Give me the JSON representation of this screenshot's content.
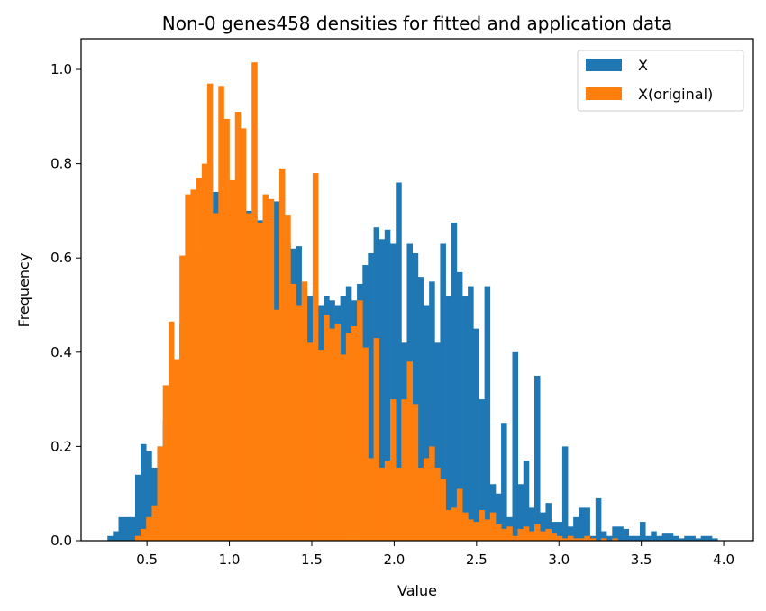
{
  "chart_data": {
    "type": "bar",
    "title": "Non-0 genes458 densities for fitted and application data",
    "xlabel": "Value",
    "ylabel": "Frequency",
    "xlim": [
      0.1,
      4.18
    ],
    "ylim": [
      0,
      1.065
    ],
    "xticks": [
      "0.5",
      "1.0",
      "1.5",
      "2.0",
      "2.5",
      "3.0",
      "3.5",
      "4.0"
    ],
    "xtick_values": [
      0.5,
      1.0,
      1.5,
      2.0,
      2.5,
      3.0,
      3.5,
      4.0
    ],
    "yticks": [
      "0.0",
      "0.2",
      "0.4",
      "0.6",
      "0.8",
      "1.0"
    ],
    "ytick_values": [
      0.0,
      0.2,
      0.4,
      0.6,
      0.8,
      1.0
    ],
    "grid": false,
    "legend_position": "top-right",
    "series": [
      {
        "name": "X",
        "color": "#1f77b4",
        "bin_width": 0.0337,
        "bins": [
          [
            0.26,
            0.01
          ],
          [
            0.293,
            0.02
          ],
          [
            0.327,
            0.05
          ],
          [
            0.36,
            0.05
          ],
          [
            0.394,
            0.05
          ],
          [
            0.428,
            0.14
          ],
          [
            0.461,
            0.205
          ],
          [
            0.495,
            0.19
          ],
          [
            0.529,
            0.155
          ],
          [
            0.562,
            0.2
          ],
          [
            0.596,
            0.255
          ],
          [
            0.63,
            0.31
          ],
          [
            0.663,
            0.385
          ],
          [
            0.697,
            0.46
          ],
          [
            0.731,
            0.52
          ],
          [
            0.764,
            0.57
          ],
          [
            0.798,
            0.62
          ],
          [
            0.832,
            0.68
          ],
          [
            0.865,
            0.72
          ],
          [
            0.899,
            0.74
          ],
          [
            0.933,
            0.695
          ],
          [
            0.966,
            0.7
          ],
          [
            1.0,
            0.71
          ],
          [
            1.034,
            0.69
          ],
          [
            1.067,
            0.68
          ],
          [
            1.101,
            0.7
          ],
          [
            1.135,
            0.69
          ],
          [
            1.168,
            0.68
          ],
          [
            1.202,
            0.675
          ],
          [
            1.236,
            0.66
          ],
          [
            1.269,
            0.72
          ],
          [
            1.303,
            0.64
          ],
          [
            1.337,
            0.63
          ],
          [
            1.37,
            0.62
          ],
          [
            1.404,
            0.625
          ],
          [
            1.438,
            0.51
          ],
          [
            1.471,
            0.52
          ],
          [
            1.505,
            0.53
          ],
          [
            1.539,
            0.5
          ],
          [
            1.572,
            0.52
          ],
          [
            1.606,
            0.51
          ],
          [
            1.64,
            0.5
          ],
          [
            1.673,
            0.52
          ],
          [
            1.707,
            0.54
          ],
          [
            1.74,
            0.51
          ],
          [
            1.774,
            0.545
          ],
          [
            1.808,
            0.585
          ],
          [
            1.841,
            0.61
          ],
          [
            1.875,
            0.665
          ],
          [
            1.909,
            0.64
          ],
          [
            1.942,
            0.66
          ],
          [
            1.976,
            0.63
          ],
          [
            2.01,
            0.76
          ],
          [
            2.043,
            0.42
          ],
          [
            2.077,
            0.63
          ],
          [
            2.111,
            0.61
          ],
          [
            2.144,
            0.56
          ],
          [
            2.178,
            0.5
          ],
          [
            2.212,
            0.55
          ],
          [
            2.245,
            0.42
          ],
          [
            2.279,
            0.63
          ],
          [
            2.313,
            0.52
          ],
          [
            2.346,
            0.675
          ],
          [
            2.38,
            0.57
          ],
          [
            2.414,
            0.52
          ],
          [
            2.447,
            0.54
          ],
          [
            2.481,
            0.45
          ],
          [
            2.515,
            0.3
          ],
          [
            2.548,
            0.54
          ],
          [
            2.582,
            0.12
          ],
          [
            2.616,
            0.1
          ],
          [
            2.649,
            0.25
          ],
          [
            2.683,
            0.05
          ],
          [
            2.717,
            0.4
          ],
          [
            2.75,
            0.12
          ],
          [
            2.784,
            0.17
          ],
          [
            2.818,
            0.07
          ],
          [
            2.851,
            0.35
          ],
          [
            2.885,
            0.06
          ],
          [
            2.919,
            0.08
          ],
          [
            2.952,
            0.04
          ],
          [
            2.986,
            0.04
          ],
          [
            3.02,
            0.2
          ],
          [
            3.053,
            0.03
          ],
          [
            3.087,
            0.05
          ],
          [
            3.121,
            0.07
          ],
          [
            3.154,
            0.07
          ],
          [
            3.188,
            0.01
          ],
          [
            3.222,
            0.09
          ],
          [
            3.255,
            0.02
          ],
          [
            3.289,
            0.01
          ],
          [
            3.323,
            0.03
          ],
          [
            3.356,
            0.03
          ],
          [
            3.39,
            0.025
          ],
          [
            3.424,
            0.01
          ],
          [
            3.457,
            0.01
          ],
          [
            3.491,
            0.04
          ],
          [
            3.525,
            0.01
          ],
          [
            3.558,
            0.02
          ],
          [
            3.592,
            0.01
          ],
          [
            3.626,
            0.015
          ],
          [
            3.659,
            0.015
          ],
          [
            3.693,
            0.01
          ],
          [
            3.727,
            0.005
          ],
          [
            3.76,
            0.01
          ],
          [
            3.794,
            0.01
          ],
          [
            3.828,
            0.005
          ],
          [
            3.861,
            0.01
          ],
          [
            3.895,
            0.01
          ],
          [
            3.929,
            0.005
          ],
          [
            3.962,
            0.0
          ],
          [
            3.996,
            0.0
          ]
        ]
      },
      {
        "name": "X(original)",
        "color": "#ff7f0e",
        "bin_width": 0.0337,
        "bins": [
          [
            0.428,
            0.01
          ],
          [
            0.461,
            0.025
          ],
          [
            0.495,
            0.05
          ],
          [
            0.529,
            0.075
          ],
          [
            0.562,
            0.2
          ],
          [
            0.596,
            0.33
          ],
          [
            0.63,
            0.465
          ],
          [
            0.663,
            0.385
          ],
          [
            0.697,
            0.605
          ],
          [
            0.731,
            0.735
          ],
          [
            0.764,
            0.745
          ],
          [
            0.798,
            0.77
          ],
          [
            0.832,
            0.8
          ],
          [
            0.865,
            0.97
          ],
          [
            0.899,
            0.695
          ],
          [
            0.933,
            0.965
          ],
          [
            0.966,
            0.895
          ],
          [
            1.0,
            0.765
          ],
          [
            1.034,
            0.91
          ],
          [
            1.067,
            0.875
          ],
          [
            1.101,
            0.695
          ],
          [
            1.135,
            1.015
          ],
          [
            1.168,
            0.675
          ],
          [
            1.202,
            0.735
          ],
          [
            1.236,
            0.725
          ],
          [
            1.269,
            0.49
          ],
          [
            1.303,
            0.79
          ],
          [
            1.337,
            0.69
          ],
          [
            1.37,
            0.545
          ],
          [
            1.404,
            0.5
          ],
          [
            1.438,
            0.55
          ],
          [
            1.471,
            0.42
          ],
          [
            1.505,
            0.78
          ],
          [
            1.539,
            0.405
          ],
          [
            1.572,
            0.48
          ],
          [
            1.606,
            0.45
          ],
          [
            1.64,
            0.46
          ],
          [
            1.673,
            0.395
          ],
          [
            1.707,
            0.44
          ],
          [
            1.74,
            0.455
          ],
          [
            1.774,
            0.51
          ],
          [
            1.808,
            0.41
          ],
          [
            1.841,
            0.175
          ],
          [
            1.875,
            0.43
          ],
          [
            1.909,
            0.155
          ],
          [
            1.942,
            0.17
          ],
          [
            1.976,
            0.3
          ],
          [
            2.01,
            0.155
          ],
          [
            2.043,
            0.3
          ],
          [
            2.077,
            0.38
          ],
          [
            2.111,
            0.29
          ],
          [
            2.144,
            0.155
          ],
          [
            2.178,
            0.175
          ],
          [
            2.212,
            0.2
          ],
          [
            2.245,
            0.155
          ],
          [
            2.279,
            0.13
          ],
          [
            2.313,
            0.065
          ],
          [
            2.346,
            0.07
          ],
          [
            2.38,
            0.11
          ],
          [
            2.414,
            0.06
          ],
          [
            2.447,
            0.045
          ],
          [
            2.481,
            0.04
          ],
          [
            2.515,
            0.065
          ],
          [
            2.548,
            0.045
          ],
          [
            2.582,
            0.06
          ],
          [
            2.616,
            0.035
          ],
          [
            2.649,
            0.025
          ],
          [
            2.683,
            0.03
          ],
          [
            2.717,
            0.01
          ],
          [
            2.75,
            0.025
          ],
          [
            2.784,
            0.03
          ],
          [
            2.818,
            0.02
          ],
          [
            2.851,
            0.035
          ],
          [
            2.885,
            0.02
          ],
          [
            2.919,
            0.025
          ],
          [
            2.952,
            0.015
          ],
          [
            2.986,
            0.01
          ],
          [
            3.02,
            0.005
          ],
          [
            3.053,
            0.01
          ],
          [
            3.087,
            0.005
          ],
          [
            3.121,
            0.005
          ],
          [
            3.154,
            0.01
          ],
          [
            3.188,
            0.005
          ],
          [
            3.222,
            0.0
          ],
          [
            3.255,
            0.005
          ],
          [
            3.289,
            0.0
          ],
          [
            3.323,
            0.005
          ],
          [
            3.356,
            0.0
          ]
        ]
      }
    ]
  }
}
